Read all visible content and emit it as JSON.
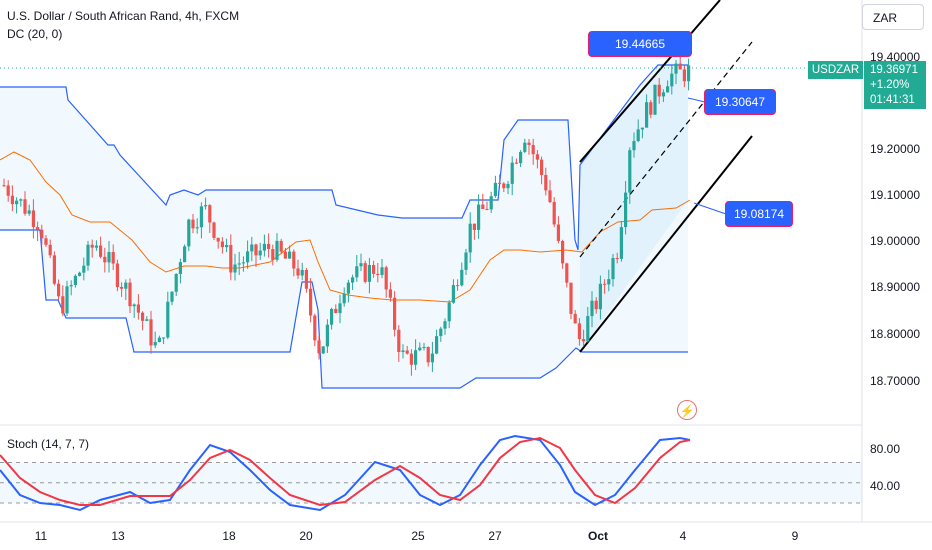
{
  "header": {
    "title": "U.S. Dollar / South African Rand, 4h, FXCM",
    "indicator": "DC (20, 0)"
  },
  "currency_button": "ZAR",
  "price_badge": {
    "symbol": "USDZAR",
    "price": "19.36971",
    "change": "+1.20%",
    "countdown": "01:41:31"
  },
  "callouts": {
    "upper": "19.44665",
    "mid": "19.30647",
    "lower": "19.08174"
  },
  "stoch": {
    "label": "Stoch (14, 7, 7)",
    "levels": [
      "80.00",
      "40.00"
    ]
  },
  "colors": {
    "up": "#26a69a",
    "down": "#ef5350",
    "channel": "#2962ff",
    "midline": "#ff6d00",
    "stoch_k": "#2962ff",
    "stoch_d": "#f23645"
  },
  "chart_data": {
    "type": "candlestick",
    "y_ticks": [
      "19.40000",
      "19.20000",
      "19.10000",
      "19.00000",
      "18.90000",
      "18.80000",
      "18.70000"
    ],
    "x_ticks": [
      "11",
      "13",
      "18",
      "20",
      "25",
      "27",
      "Oct",
      "4",
      "9"
    ],
    "ylim": [
      18.61,
      19.52
    ],
    "stoch_ylim": [
      0,
      100
    ],
    "donchian_upper": [
      19.34,
      19.34,
      19.34,
      19.34,
      19.34,
      19.34,
      19.34,
      19.34,
      19.34,
      19.34,
      19.34,
      19.34,
      19.34,
      19.34,
      19.34,
      19.34,
      19.34,
      19.34,
      19.34,
      19.34,
      19.34,
      19.34,
      19.34,
      19.34,
      19.34,
      19.2,
      19.2,
      19.2,
      19.2,
      19.2,
      19.15,
      19.15,
      19.15,
      19.11,
      19.11,
      19.11,
      19.11,
      19.11,
      19.11,
      19.11,
      19.11,
      19.11,
      19.11,
      19.11,
      19.11,
      19.11,
      19.11,
      19.11,
      19.11,
      19.11,
      19.11,
      19.11,
      19.11,
      19.11,
      19.11,
      19.11,
      19.11,
      19.11,
      19.11,
      19.11,
      19.11,
      19.11,
      19.11,
      19.11,
      19.11,
      19.11,
      19.11,
      19.11,
      19.11,
      19.11,
      19.06,
      19.06,
      19.06,
      19.06,
      19.06,
      19.06,
      19.06,
      19.06,
      19.06,
      19.06,
      19.06,
      19.06,
      19.06,
      19.06,
      19.06,
      19.06,
      19.06,
      19.06,
      19.06,
      19.06,
      19.06,
      19.06,
      19.06,
      19.06,
      19.06,
      19.06,
      19.06,
      19.06,
      19.06,
      19.06,
      19.06,
      19.06,
      19.06,
      19.06,
      19.06,
      19.06,
      19.06,
      19.06,
      19.06,
      19.06,
      19.06,
      19.06,
      19.06,
      19.06,
      19.06,
      19.06,
      19.06,
      19.06,
      19.06,
      19.06,
      19.06,
      19.06,
      19.06,
      19.06,
      19.06,
      19.06,
      19.06,
      19.06,
      19.06,
      19.06,
      19.06,
      19.06,
      19.06,
      19.06,
      19.25,
      19.25,
      19.25,
      19.25,
      19.25,
      19.25,
      19.25,
      19.25,
      19.25,
      19.25,
      19.25,
      19.25,
      19.25,
      19.25,
      19.25,
      19.25,
      19.25,
      19.25,
      19.25,
      19.25,
      19.25,
      19.25,
      19.25,
      19.25,
      19.25,
      19.25,
      19.25,
      19.25,
      19.25,
      19.25,
      19.25,
      19.25,
      19.25,
      19.25,
      19.25,
      19.25,
      19.25,
      19.25,
      19.25,
      19.25,
      19.25,
      19.25,
      19.25,
      19.25,
      19.25,
      19.25,
      19.25,
      19.25,
      19.25,
      19.25,
      19.25,
      19.25,
      19.25,
      19.25,
      19.25,
      19.25,
      19.25,
      19.25,
      19.25,
      19.25,
      19.25,
      19.25,
      19.25,
      19.25,
      19.25,
      19.25,
      19.25,
      19.25,
      19.25,
      19.25,
      19.25,
      19.25
    ],
    "channel_lines": {
      "upper_start": 19.17,
      "upper_end": 19.52,
      "dash_start": 18.98,
      "dash_end": 19.41,
      "lower_start": 18.78,
      "lower_end": 19.24
    }
  }
}
